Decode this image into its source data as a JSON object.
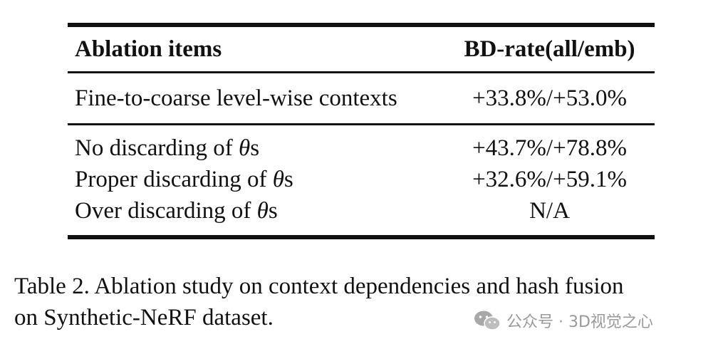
{
  "table": {
    "header": {
      "col1": "Ablation items",
      "col2": "BD-rate(all/emb)"
    },
    "context_row": {
      "label": "Fine-to-coarse level-wise contexts",
      "value": "+33.8%/+53.0%"
    },
    "discard_rows": [
      {
        "label_prefix": "No discarding of ",
        "symbol": "θ",
        "label_suffix": "s",
        "value": "+43.7%/+78.8%"
      },
      {
        "label_prefix": "Proper discarding of ",
        "symbol": "θ",
        "label_suffix": "s",
        "value": "+32.6%/+59.1%"
      },
      {
        "label_prefix": "Over discarding of ",
        "symbol": "θ",
        "label_suffix": "s",
        "value": "N/A"
      }
    ]
  },
  "caption": {
    "line1": "Table 2.  Ablation study on context dependencies and hash fusion",
    "line2": "on Synthetic-NeRF dataset."
  },
  "watermark": {
    "text": "公众号 · 3D视觉之心",
    "logo_icon": "wechat-icon"
  }
}
